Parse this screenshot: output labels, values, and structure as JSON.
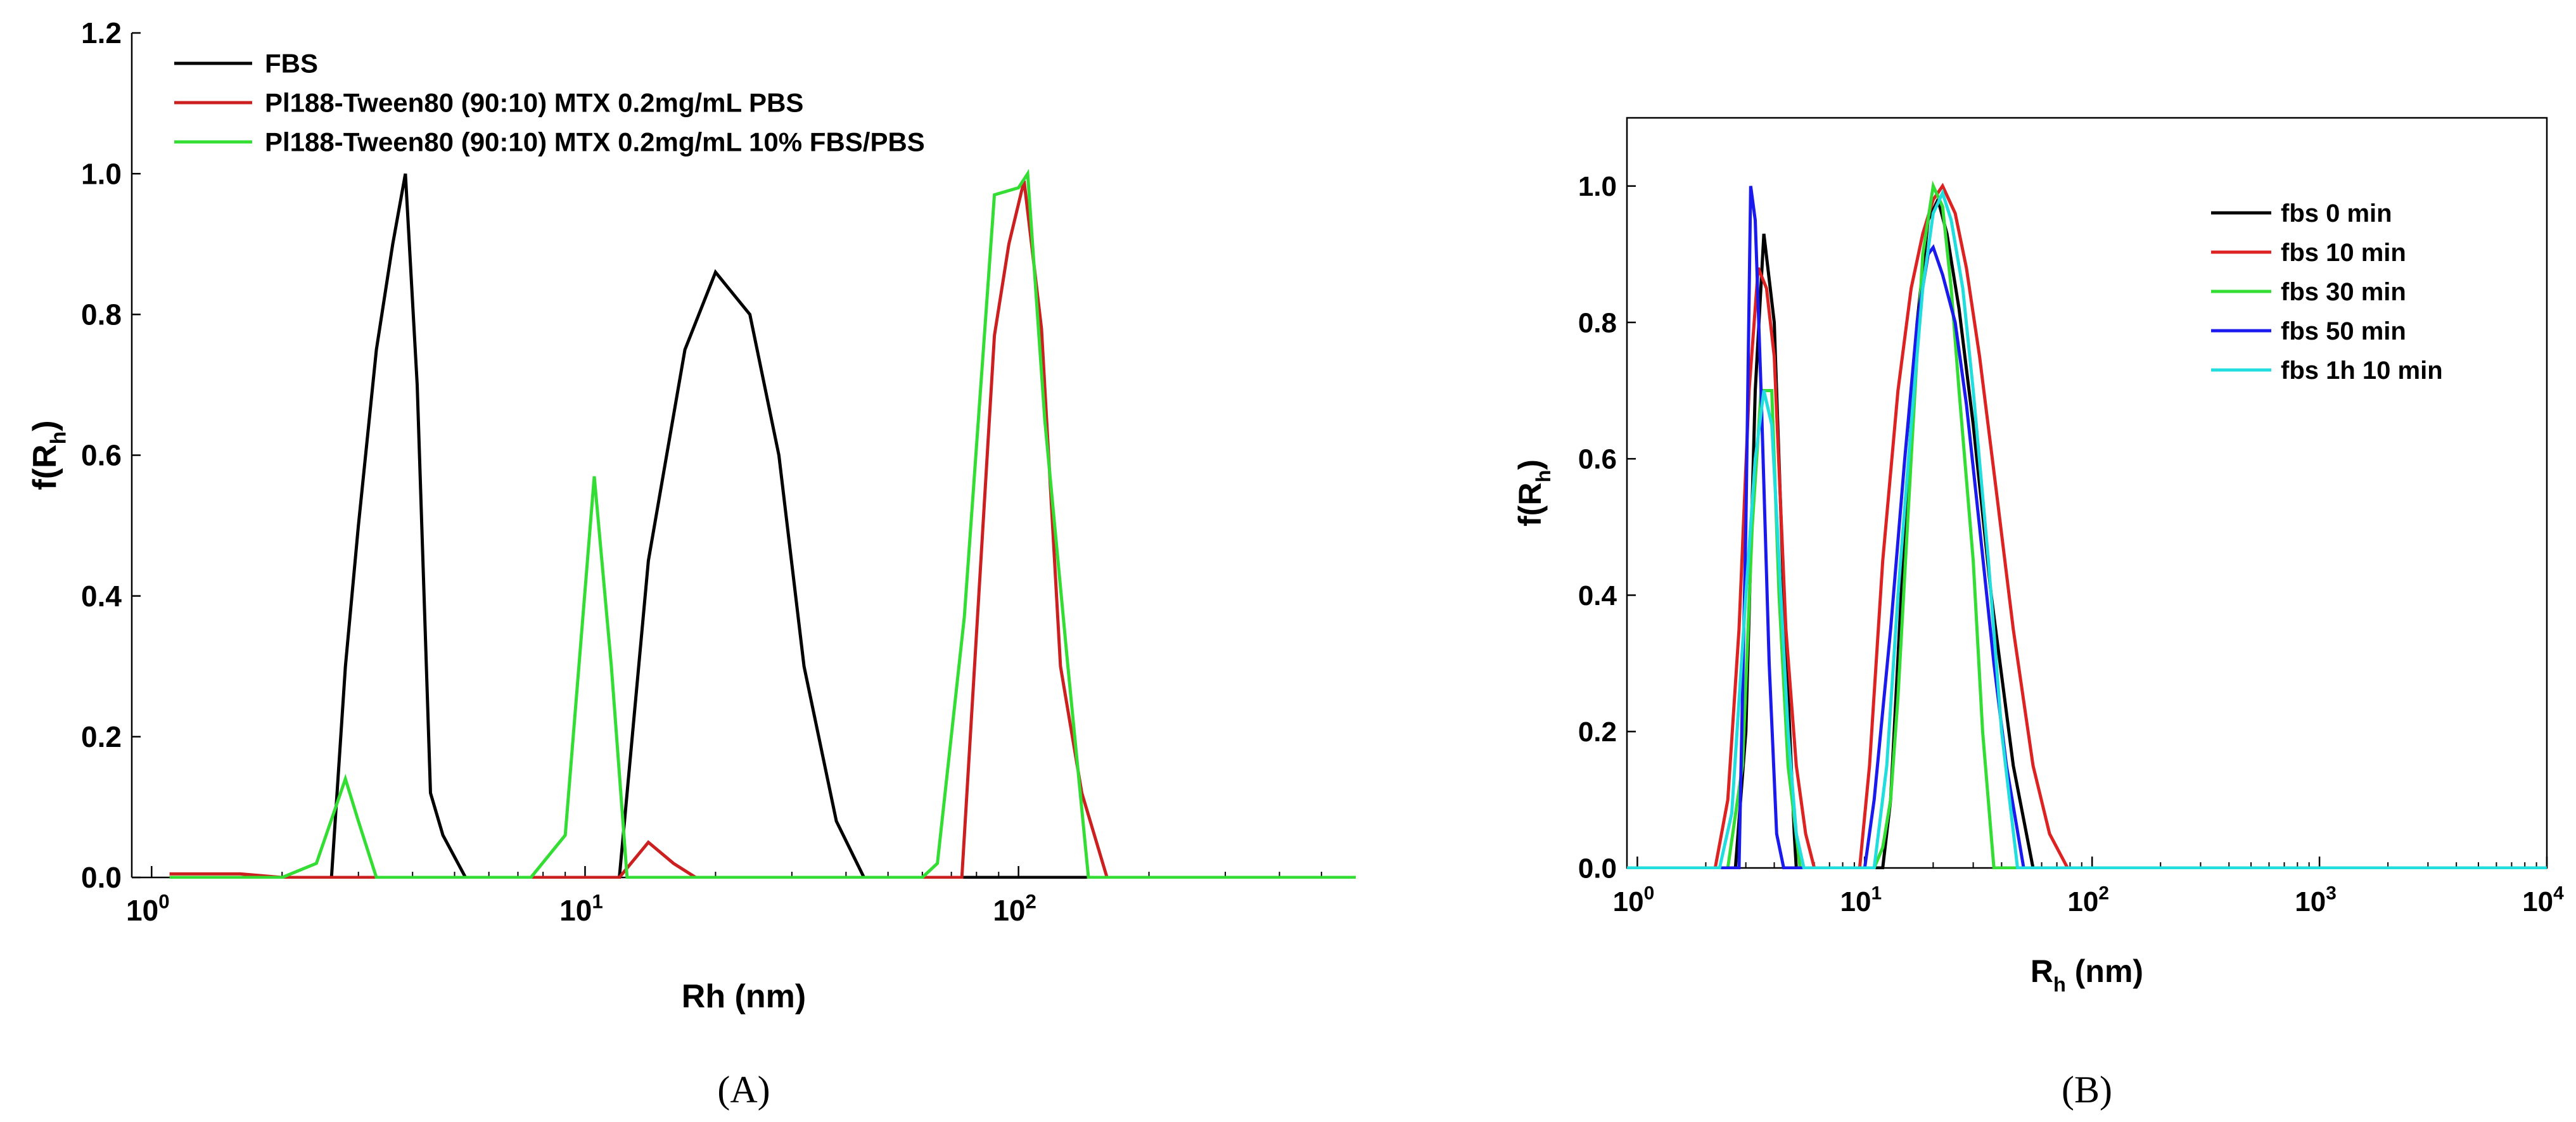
{
  "chart_data": [
    {
      "panel": "A",
      "caption": "(A)",
      "type": "line",
      "xscale": "log",
      "xlabel": "Rh (nm)",
      "ylabel": "f(R",
      "ylabel_sub": "h",
      "ylabel_close": ")",
      "xlim": [
        0.9,
        600
      ],
      "ylim": [
        0,
        1.2
      ],
      "x_ticks": [
        {
          "value": 1,
          "base": "10",
          "exp": "0"
        },
        {
          "value": 10,
          "base": "10",
          "exp": "1"
        },
        {
          "value": 100,
          "base": "10",
          "exp": "2"
        }
      ],
      "y_ticks": [
        "0.0",
        "0.2",
        "0.4",
        "0.6",
        "0.8",
        "1.0",
        "1.2"
      ],
      "legend_position": "top-left",
      "series": [
        {
          "name": "FBS",
          "color": "#000000",
          "x": [
            1.1,
            1.5,
            2.0,
            2.6,
            2.8,
            3.0,
            3.3,
            3.6,
            3.85,
            4.1,
            4.4,
            4.7,
            5.3,
            6,
            8,
            12,
            14,
            17,
            20,
            24,
            28,
            32,
            38,
            44,
            60,
            100,
            200,
            600
          ],
          "y": [
            0,
            0,
            0,
            0,
            0.3,
            0.5,
            0.75,
            0.9,
            1.0,
            0.7,
            0.12,
            0.06,
            0,
            0,
            0,
            0,
            0.45,
            0.75,
            0.86,
            0.8,
            0.6,
            0.3,
            0.08,
            0,
            0,
            0,
            0,
            0
          ]
        },
        {
          "name": "Pl188-Tween80 (90:10) MTX 0.2mg/mL PBS",
          "color": "#cc1f1f",
          "x": [
            1.1,
            1.6,
            2.0,
            3.0,
            10,
            12,
            14,
            16,
            18,
            30,
            70,
            74,
            88,
            95,
            103,
            113,
            125,
            140,
            160,
            200,
            600
          ],
          "y": [
            0.005,
            0.005,
            0,
            0,
            0,
            0,
            0.05,
            0.02,
            0,
            0,
            0,
            0,
            0.77,
            0.9,
            0.99,
            0.78,
            0.3,
            0.12,
            0,
            0,
            0
          ]
        },
        {
          "name": "Pl188-Tween80 (90:10) MTX 0.2mg/mL 10% FBS/PBS",
          "color": "#33dd33",
          "x": [
            1.1,
            2.0,
            2.4,
            2.8,
            3.0,
            3.3,
            7.5,
            9.0,
            10.5,
            11.5,
            12.5,
            60,
            65,
            75,
            88,
            100,
            105,
            115,
            130,
            145,
            200,
            600
          ],
          "y": [
            0,
            0,
            0.02,
            0.14,
            0.08,
            0,
            0,
            0.06,
            0.57,
            0.3,
            0,
            0,
            0.02,
            0.37,
            0.97,
            0.98,
            1.0,
            0.65,
            0.3,
            0,
            0,
            0
          ]
        }
      ]
    },
    {
      "panel": "B",
      "caption": "(B)",
      "type": "line",
      "xscale": "log",
      "xlabel": "R",
      "xlabel_sub": "h",
      "xlabel_rest": " (nm)",
      "ylabel": "f(R",
      "ylabel_sub": "h",
      "ylabel_close": ")",
      "xlim": [
        0.9,
        10000
      ],
      "ylim": [
        0,
        1.1
      ],
      "x_ticks": [
        {
          "value": 1,
          "base": "10",
          "exp": "0"
        },
        {
          "value": 10,
          "base": "10",
          "exp": "1"
        },
        {
          "value": 100,
          "base": "10",
          "exp": "2"
        },
        {
          "value": 1000,
          "base": "10",
          "exp": "3"
        },
        {
          "value": 10000,
          "base": "10",
          "exp": "4"
        }
      ],
      "y_ticks": [
        "0.0",
        "0.2",
        "0.4",
        "0.6",
        "0.8",
        "1.0"
      ],
      "legend_position": "top-right",
      "series": [
        {
          "name": "fbs 0 min",
          "color": "#000000",
          "x": [
            0.9,
            2.7,
            3.0,
            3.3,
            3.6,
            4.0,
            4.4,
            4.9,
            5.0,
            12,
            13,
            15,
            17,
            19,
            21,
            23,
            26,
            30,
            36,
            45,
            55,
            60,
            10000
          ],
          "y": [
            0,
            0,
            0.2,
            0.7,
            0.93,
            0.8,
            0.4,
            0.05,
            0,
            0,
            0.1,
            0.5,
            0.8,
            0.95,
            0.98,
            0.93,
            0.82,
            0.65,
            0.4,
            0.15,
            0,
            0,
            0
          ]
        },
        {
          "name": "fbs 10 min",
          "color": "#dd2222",
          "x": [
            0.9,
            2.2,
            2.5,
            2.8,
            3.1,
            3.4,
            3.7,
            4.0,
            4.5,
            5.0,
            5.5,
            6.0,
            9.5,
            10.5,
            12,
            14,
            16,
            18,
            20,
            22,
            25,
            28,
            32,
            38,
            45,
            55,
            65,
            78,
            10000
          ],
          "y": [
            0,
            0,
            0.1,
            0.35,
            0.7,
            0.88,
            0.85,
            0.75,
            0.35,
            0.15,
            0.05,
            0,
            0,
            0.15,
            0.45,
            0.7,
            0.85,
            0.93,
            0.98,
            1.0,
            0.96,
            0.88,
            0.75,
            0.55,
            0.35,
            0.15,
            0.05,
            0,
            0
          ]
        },
        {
          "name": "fbs 30 min",
          "color": "#33dd33",
          "x": [
            0.9,
            2.5,
            2.9,
            3.2,
            3.5,
            3.9,
            4.2,
            4.6,
            5.2,
            11,
            12,
            13,
            14,
            16,
            18,
            20,
            22,
            24,
            26,
            30,
            33,
            37,
            10000
          ],
          "y": [
            0,
            0,
            0.15,
            0.5,
            0.7,
            0.7,
            0.4,
            0.15,
            0,
            0,
            0.03,
            0.1,
            0.25,
            0.6,
            0.9,
            1.0,
            0.97,
            0.85,
            0.7,
            0.45,
            0.2,
            0,
            0
          ]
        },
        {
          "name": "fbs 50 min",
          "color": "#1a1aee",
          "x": [
            0.9,
            2.8,
            3.0,
            3.15,
            3.3,
            3.5,
            3.8,
            4.1,
            4.4,
            10,
            11,
            13,
            15,
            17,
            19,
            20,
            22,
            25,
            28,
            32,
            37,
            42,
            50,
            10000
          ],
          "y": [
            0,
            0,
            0.5,
            1.0,
            0.95,
            0.7,
            0.3,
            0.05,
            0,
            0,
            0.1,
            0.35,
            0.6,
            0.8,
            0.9,
            0.91,
            0.87,
            0.8,
            0.68,
            0.5,
            0.3,
            0.15,
            0,
            0
          ]
        },
        {
          "name": "fbs 1h 10 min",
          "color": "#22dddd",
          "x": [
            0.9,
            2.3,
            2.6,
            3.0,
            3.3,
            3.6,
            3.9,
            4.2,
            4.6,
            5.0,
            5.4,
            11,
            12.5,
            14,
            16,
            18,
            20,
            22,
            24,
            27,
            30,
            35,
            40,
            47,
            10000
          ],
          "y": [
            0,
            0,
            0.08,
            0.4,
            0.6,
            0.7,
            0.65,
            0.45,
            0.2,
            0.05,
            0,
            0,
            0.15,
            0.4,
            0.65,
            0.85,
            0.96,
            0.99,
            0.95,
            0.85,
            0.7,
            0.45,
            0.2,
            0,
            0
          ]
        }
      ]
    }
  ]
}
